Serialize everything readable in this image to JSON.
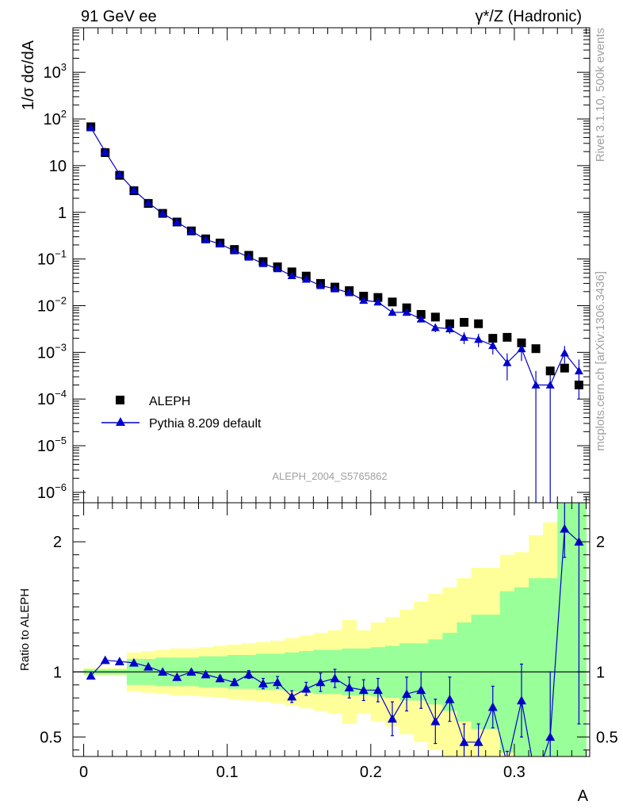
{
  "header": {
    "left": "91 GeV ee",
    "right": "γ*/Z (Hadronic)"
  },
  "side_text": {
    "rivet": "Rivet 3.1.10,  500k events",
    "mcplots": "mcplots.cern.ch [arXiv:1306.3436]"
  },
  "analysis_id": "ALEPH_2004_S5765862",
  "colors": {
    "data": "#000000",
    "mc": "#0000cc",
    "band_inner": "#99ff99",
    "band_outer": "#ffff99"
  },
  "chart_data": [
    {
      "type": "scatter",
      "panel": "main",
      "ylabel": "1/σ  dσ/dA",
      "yscale": "log",
      "ylim": [
        6e-07,
        9000
      ],
      "xlim": [
        -0.0075,
        0.3525
      ],
      "y_ticks": [
        {
          "value": 1e-06,
          "base": "10",
          "exp": "−6"
        },
        {
          "value": 1e-05,
          "base": "10",
          "exp": "−5"
        },
        {
          "value": 0.0001,
          "base": "10",
          "exp": "−4"
        },
        {
          "value": 0.001,
          "base": "10",
          "exp": "−3"
        },
        {
          "value": 0.01,
          "base": "10",
          "exp": "−2"
        },
        {
          "value": 0.1,
          "base": "10",
          "exp": "−1"
        },
        {
          "value": 1,
          "base": "1",
          "exp": ""
        },
        {
          "value": 10,
          "base": "10",
          "exp": ""
        },
        {
          "value": 100,
          "base": "10",
          "exp": "2"
        },
        {
          "value": 1000,
          "base": "10",
          "exp": "3"
        }
      ],
      "legend_position": "bottom-left",
      "series": [
        {
          "name": "ALEPH",
          "marker": "square",
          "x": [
            0.005,
            0.015,
            0.025,
            0.035,
            0.045,
            0.055,
            0.065,
            0.075,
            0.085,
            0.095,
            0.105,
            0.115,
            0.125,
            0.135,
            0.145,
            0.155,
            0.165,
            0.175,
            0.185,
            0.195,
            0.205,
            0.215,
            0.225,
            0.235,
            0.245,
            0.255,
            0.265,
            0.275,
            0.285,
            0.295,
            0.305,
            0.315,
            0.325,
            0.335,
            0.345
          ],
          "y": [
            68,
            19,
            6.2,
            2.9,
            1.55,
            0.95,
            0.62,
            0.4,
            0.27,
            0.22,
            0.16,
            0.12,
            0.088,
            0.068,
            0.053,
            0.043,
            0.03,
            0.025,
            0.021,
            0.016,
            0.015,
            0.012,
            0.009,
            0.0065,
            0.0057,
            0.0041,
            0.0044,
            0.0041,
            0.002,
            0.0021,
            0.0016,
            0.0012,
            0.0004,
            0.00046,
            0.0002
          ]
        },
        {
          "name": "Pythia 8.209 default",
          "marker": "triangle",
          "x": [
            0.005,
            0.015,
            0.025,
            0.035,
            0.045,
            0.055,
            0.065,
            0.075,
            0.085,
            0.095,
            0.105,
            0.115,
            0.125,
            0.135,
            0.145,
            0.155,
            0.165,
            0.175,
            0.185,
            0.195,
            0.205,
            0.215,
            0.225,
            0.235,
            0.245,
            0.255,
            0.265,
            0.275,
            0.285,
            0.295,
            0.305,
            0.315,
            0.325,
            0.335,
            0.345
          ],
          "y": [
            65,
            20,
            6.5,
            3.0,
            1.6,
            0.95,
            0.62,
            0.4,
            0.26,
            0.21,
            0.15,
            0.11,
            0.08,
            0.062,
            0.044,
            0.037,
            0.027,
            0.023,
            0.019,
            0.013,
            0.012,
            0.0072,
            0.0072,
            0.0052,
            0.0034,
            0.0032,
            0.0021,
            0.0019,
            0.0014,
            0.0006,
            0.0012,
            0.0002,
            0.0002,
            0.00097,
            0.0004
          ],
          "yerr_low": [
            1,
            0.2,
            0.1,
            0.05,
            0.03,
            0.02,
            0.01,
            0.008,
            0.005,
            0.004,
            0.003,
            0.002,
            0.002,
            0.0015,
            0.001,
            0.001,
            0.0007,
            0.0006,
            0.0005,
            0.0004,
            0.0004,
            0.0003,
            0.0004,
            0.0005,
            0.0007,
            0.0007,
            0.0006,
            0.0006,
            0.0005,
            0.00035,
            0.00055,
            0.0002,
            0.0002,
            0.0004,
            0.0003
          ],
          "yerr_high": [
            1,
            0.2,
            0.1,
            0.05,
            0.03,
            0.02,
            0.01,
            0.008,
            0.005,
            0.004,
            0.003,
            0.002,
            0.002,
            0.0015,
            0.001,
            0.001,
            0.0007,
            0.0006,
            0.0005,
            0.0004,
            0.0004,
            0.0003,
            0.0004,
            0.0005,
            0.0007,
            0.0007,
            0.0006,
            0.0006,
            0.0005,
            0.00035,
            0.00055,
            0.0002,
            0.0002,
            0.0004,
            0.0003
          ]
        }
      ]
    },
    {
      "type": "line",
      "panel": "ratio",
      "ylabel": "Ratio to ALEPH",
      "xlabel": "A",
      "ylim": [
        0.35,
        2.3
      ],
      "xlim": [
        -0.0075,
        0.3525
      ],
      "y_ticks": [
        0.5,
        1,
        2
      ],
      "x_ticks": [
        {
          "value": 0,
          "label": "0"
        },
        {
          "value": 0.1,
          "label": "0.1"
        },
        {
          "value": 0.2,
          "label": "0.2"
        },
        {
          "value": 0.3,
          "label": "0.3"
        }
      ],
      "reference_line": 1,
      "bands": {
        "x_edges": [
          0,
          0.01,
          0.02,
          0.03,
          0.04,
          0.05,
          0.06,
          0.07,
          0.08,
          0.09,
          0.1,
          0.11,
          0.12,
          0.13,
          0.14,
          0.15,
          0.16,
          0.17,
          0.18,
          0.19,
          0.2,
          0.21,
          0.22,
          0.23,
          0.24,
          0.25,
          0.26,
          0.27,
          0.28,
          0.29,
          0.3,
          0.31,
          0.32,
          0.33,
          0.34,
          0.35
        ],
        "inner_low": [
          0.98,
          0.98,
          0.98,
          0.9,
          0.9,
          0.89,
          0.89,
          0.89,
          0.88,
          0.88,
          0.87,
          0.87,
          0.86,
          0.86,
          0.85,
          0.84,
          0.83,
          0.83,
          0.82,
          0.82,
          0.81,
          0.8,
          0.78,
          0.78,
          0.75,
          0.7,
          0.62,
          0.56,
          0.56,
          0.38,
          0.35,
          0.35,
          0.35,
          0.35,
          0.35
        ],
        "inner_high": [
          1.02,
          1.02,
          1.02,
          1.1,
          1.1,
          1.11,
          1.11,
          1.11,
          1.12,
          1.12,
          1.13,
          1.13,
          1.14,
          1.14,
          1.15,
          1.16,
          1.17,
          1.17,
          1.18,
          1.18,
          1.19,
          1.2,
          1.22,
          1.22,
          1.25,
          1.3,
          1.38,
          1.44,
          1.44,
          1.62,
          1.65,
          1.72,
          1.72,
          2.3,
          2.3
        ],
        "outer_low": [
          0.97,
          0.97,
          0.97,
          0.85,
          0.84,
          0.83,
          0.82,
          0.82,
          0.81,
          0.8,
          0.79,
          0.78,
          0.77,
          0.76,
          0.74,
          0.72,
          0.7,
          0.68,
          0.6,
          0.68,
          0.62,
          0.58,
          0.52,
          0.46,
          0.4,
          0.35,
          0.35,
          0.35,
          0.35,
          0.35,
          0.35,
          0.35,
          0.35,
          0.35,
          0.35
        ],
        "outer_high": [
          1.03,
          1.03,
          1.03,
          1.15,
          1.16,
          1.17,
          1.18,
          1.18,
          1.19,
          1.2,
          1.21,
          1.22,
          1.23,
          1.24,
          1.26,
          1.28,
          1.3,
          1.32,
          1.4,
          1.32,
          1.38,
          1.42,
          1.48,
          1.54,
          1.6,
          1.65,
          1.72,
          1.8,
          1.8,
          1.9,
          1.92,
          2.05,
          2.15,
          2.3,
          2.3
        ]
      },
      "series": [
        {
          "name": "Pythia 8.209 default",
          "x": [
            0.005,
            0.015,
            0.025,
            0.035,
            0.045,
            0.055,
            0.065,
            0.075,
            0.085,
            0.095,
            0.105,
            0.115,
            0.125,
            0.135,
            0.145,
            0.155,
            0.165,
            0.175,
            0.185,
            0.195,
            0.205,
            0.215,
            0.225,
            0.235,
            0.245,
            0.255,
            0.265,
            0.275,
            0.285,
            0.295,
            0.305,
            0.315,
            0.325,
            0.335,
            0.345
          ],
          "y": [
            0.97,
            1.09,
            1.08,
            1.07,
            1.04,
            1.0,
            0.96,
            1.0,
            0.98,
            0.95,
            0.92,
            0.98,
            0.91,
            0.92,
            0.81,
            0.87,
            0.92,
            0.95,
            0.88,
            0.86,
            0.86,
            0.64,
            0.83,
            0.86,
            0.62,
            0.79,
            0.46,
            0.46,
            0.73,
            0.29,
            0.78,
            0.17,
            0.5,
            2.1,
            2.0
          ],
          "yerr_low": [
            0.01,
            0.01,
            0.01,
            0.01,
            0.01,
            0.01,
            0.01,
            0.015,
            0.02,
            0.02,
            0.025,
            0.03,
            0.04,
            0.045,
            0.045,
            0.05,
            0.07,
            0.07,
            0.08,
            0.08,
            0.09,
            0.13,
            0.13,
            0.14,
            0.17,
            0.17,
            0.14,
            0.14,
            0.16,
            0.1,
            0.28,
            0.1,
            0.5,
            0.22,
            1.4
          ],
          "yerr_high": [
            0.01,
            0.01,
            0.01,
            0.01,
            0.01,
            0.01,
            0.01,
            0.015,
            0.02,
            0.02,
            0.025,
            0.03,
            0.04,
            0.045,
            0.045,
            0.05,
            0.07,
            0.07,
            0.08,
            0.08,
            0.09,
            0.13,
            0.13,
            0.14,
            0.17,
            0.17,
            0.14,
            0.14,
            0.16,
            0.1,
            0.28,
            0.1,
            0.5,
            0.22,
            1.4
          ]
        }
      ]
    }
  ]
}
